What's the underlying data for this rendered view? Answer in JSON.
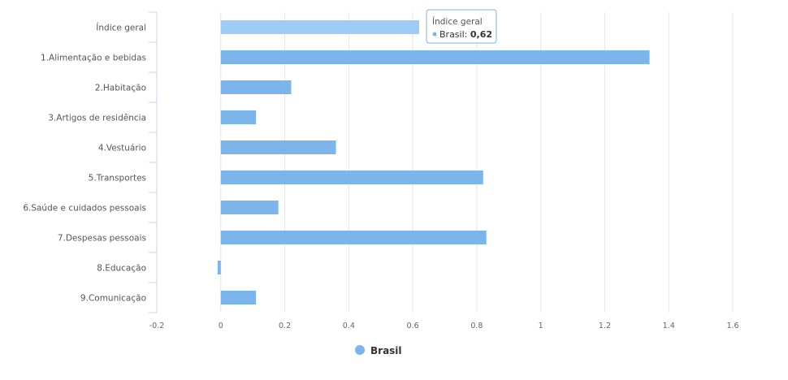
{
  "chart_data": {
    "type": "bar",
    "orientation": "horizontal",
    "title": "",
    "xlabel": "",
    "ylabel": "",
    "categories": [
      "Índice geral",
      "1.Alimentação e bebidas",
      "2.Habitação",
      "3.Artigos de residência",
      "4.Vestuário",
      "5.Transportes",
      "6.Saúde e cuidados pessoais",
      "7.Despesas pessoais",
      "8.Educação",
      "9.Comunicação"
    ],
    "series": [
      {
        "name": "Brasil",
        "values": [
          0.62,
          1.34,
          0.22,
          0.11,
          0.36,
          0.82,
          0.18,
          0.83,
          -0.01,
          0.11
        ]
      }
    ],
    "xlim": [
      -0.2,
      1.6
    ],
    "xticks": [
      "-0.2",
      "0",
      "0.2",
      "0.4",
      "0.6",
      "0.8",
      "1",
      "1.2",
      "1.4",
      "1.6"
    ],
    "grid": "vertical",
    "legend": "bottom-center",
    "colors": {
      "bar": "#7cb5ec",
      "bar_highlight": "#9dcdf7",
      "grid": "#e6e6e6",
      "axis": "#ccd6eb"
    },
    "highlighted_index": 0,
    "tooltip": {
      "title": "Índice geral",
      "series": "Brasil",
      "value": "0,62"
    }
  }
}
